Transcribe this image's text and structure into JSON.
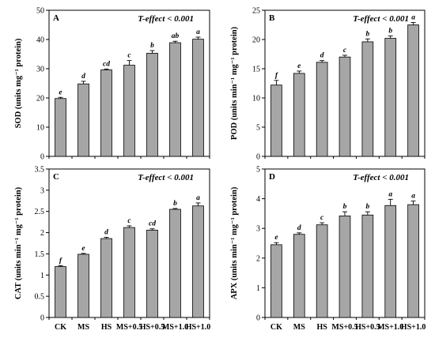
{
  "chart_data": [
    {
      "type": "bar",
      "panel_label": "A",
      "annotation": "T-effect < 0.001",
      "ylabel": "SOD (units mg⁻¹ protein)",
      "ylim": [
        0,
        50
      ],
      "yticks": [
        0,
        10,
        20,
        30,
        40,
        50
      ],
      "ytick_labels": [
        "0",
        "10",
        "20",
        "30",
        "40",
        "50"
      ],
      "categories": [
        "CK",
        "MS",
        "HS",
        "MS+0.5",
        "HS+0.5",
        "MS+1.0",
        "HS+1.0"
      ],
      "values": [
        19.8,
        24.8,
        29.6,
        31.2,
        35.3,
        38.9,
        40.1
      ],
      "errors": [
        0.4,
        0.9,
        0.3,
        1.6,
        0.9,
        0.5,
        0.7
      ],
      "letters": [
        "e",
        "d",
        "cd",
        "c",
        "b",
        "ab",
        "a"
      ],
      "bar_color": "#a6a6a6"
    },
    {
      "type": "bar",
      "panel_label": "B",
      "annotation": "T-effect < 0.001",
      "ylabel": "POD (units min⁻¹ mg⁻¹ protein)",
      "ylim": [
        0,
        25
      ],
      "yticks": [
        0,
        5,
        10,
        15,
        20,
        25
      ],
      "ytick_labels": [
        "0",
        "5",
        "10",
        "15",
        "20",
        "25"
      ],
      "categories": [
        "CK",
        "MS",
        "HS",
        "MS+0.5",
        "HS+0.5",
        "MS+1.0",
        "HS+1.0"
      ],
      "values": [
        12.2,
        14.2,
        16.1,
        17.0,
        19.6,
        20.2,
        22.5
      ],
      "errors": [
        0.8,
        0.4,
        0.3,
        0.3,
        0.5,
        0.4,
        0.4
      ],
      "letters": [
        "f",
        "e",
        "d",
        "c",
        "b",
        "b",
        "a"
      ],
      "bar_color": "#a6a6a6"
    },
    {
      "type": "bar",
      "panel_label": "C",
      "annotation": "T-effect < 0.001",
      "ylabel": "CAT (units min⁻¹ mg⁻¹ protein)",
      "ylim": [
        0,
        3.5
      ],
      "yticks": [
        0,
        0.5,
        1,
        1.5,
        2,
        2.5,
        3,
        3.5
      ],
      "ytick_labels": [
        "0",
        "0.5",
        "1",
        "1.5",
        "2",
        "2.5",
        "3",
        "3.5"
      ],
      "categories": [
        "CK",
        "MS",
        "HS",
        "MS+0.5",
        "HS+0.5",
        "MS+1.0",
        "HS+1.0"
      ],
      "values": [
        1.2,
        1.49,
        1.86,
        2.12,
        2.06,
        2.55,
        2.63
      ],
      "errors": [
        0.02,
        0.02,
        0.03,
        0.04,
        0.03,
        0.02,
        0.07
      ],
      "letters": [
        "f",
        "e",
        "d",
        "c",
        "cd",
        "b",
        "a"
      ],
      "bar_color": "#a6a6a6"
    },
    {
      "type": "bar",
      "panel_label": "D",
      "annotation": "T-effect < 0.001",
      "ylabel": "APX (units min⁻¹ mg⁻¹ protein)",
      "ylim": [
        0,
        5
      ],
      "yticks": [
        0,
        1,
        2,
        3,
        4,
        5
      ],
      "ytick_labels": [
        "0",
        "1",
        "2",
        "3",
        "4",
        "5"
      ],
      "categories": [
        "CK",
        "MS",
        "HS",
        "MS+0.5",
        "HS+0.5",
        "MS+1.0",
        "HS+1.0"
      ],
      "values": [
        2.45,
        2.8,
        3.12,
        3.42,
        3.45,
        3.77,
        3.8
      ],
      "errors": [
        0.07,
        0.05,
        0.07,
        0.14,
        0.11,
        0.21,
        0.12
      ],
      "letters": [
        "e",
        "d",
        "c",
        "b",
        "b",
        "a",
        "a"
      ],
      "bar_color": "#a6a6a6"
    }
  ]
}
